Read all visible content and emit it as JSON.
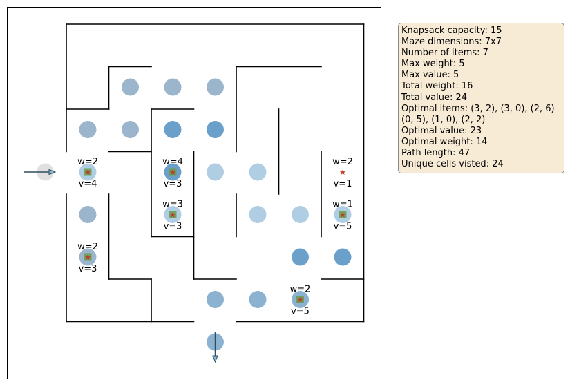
{
  "maze": {
    "rows": 7,
    "cols": 7,
    "walls": [
      [
        [
          0,
          0
        ],
        [
          7,
          0
        ]
      ],
      [
        [
          7,
          0
        ],
        [
          7,
          7
        ]
      ],
      [
        [
          7,
          7
        ],
        [
          4,
          7
        ]
      ],
      [
        [
          3,
          7
        ],
        [
          0,
          7
        ]
      ],
      [
        [
          0,
          7
        ],
        [
          0,
          4
        ]
      ],
      [
        [
          0,
          3
        ],
        [
          0,
          0
        ]
      ],
      [
        [
          1,
          1
        ],
        [
          1,
          2
        ]
      ],
      [
        [
          0,
          2
        ],
        [
          1,
          2
        ]
      ],
      [
        [
          1,
          1
        ],
        [
          2,
          1
        ]
      ],
      [
        [
          1,
          3
        ],
        [
          2,
          3
        ]
      ],
      [
        [
          2,
          2
        ],
        [
          3,
          2
        ]
      ],
      [
        [
          2,
          2
        ],
        [
          2,
          5
        ]
      ],
      [
        [
          2,
          5
        ],
        [
          3,
          5
        ]
      ],
      [
        [
          3,
          3
        ],
        [
          3,
          6
        ]
      ],
      [
        [
          3,
          6
        ],
        [
          4,
          6
        ]
      ],
      [
        [
          4,
          1
        ],
        [
          4,
          3
        ]
      ],
      [
        [
          4,
          1
        ],
        [
          6,
          1
        ]
      ],
      [
        [
          4,
          4
        ],
        [
          4,
          5
        ]
      ],
      [
        [
          5,
          2
        ],
        [
          5,
          4
        ]
      ],
      [
        [
          6,
          3
        ],
        [
          6,
          5
        ]
      ],
      [
        [
          6,
          6
        ],
        [
          7,
          6
        ]
      ],
      [
        [
          1,
          4
        ],
        [
          1,
          6
        ]
      ],
      [
        [
          1,
          6
        ],
        [
          2,
          6
        ]
      ],
      [
        [
          2,
          6
        ],
        [
          2,
          7
        ]
      ]
    ],
    "visited_cells": [
      {
        "row": 1,
        "col": 1,
        "visits": 1
      },
      {
        "row": 1,
        "col": 2,
        "visits": 1
      },
      {
        "row": 1,
        "col": 3,
        "visits": 1
      },
      {
        "row": 2,
        "col": 0,
        "visits": 1
      },
      {
        "row": 2,
        "col": 1,
        "visits": 1
      },
      {
        "row": 2,
        "col": 2,
        "visits": 2
      },
      {
        "row": 2,
        "col": 3,
        "visits": 2
      },
      {
        "row": 3,
        "col": -1,
        "visits": 0
      },
      {
        "row": 3,
        "col": 0,
        "visits": 1
      },
      {
        "row": 3,
        "col": 2,
        "visits": 2
      },
      {
        "row": 3,
        "col": 3,
        "visits": 1
      },
      {
        "row": 3,
        "col": 4,
        "visits": 1
      },
      {
        "row": 4,
        "col": 0,
        "visits": 1
      },
      {
        "row": 4,
        "col": 2,
        "visits": 1
      },
      {
        "row": 4,
        "col": 4,
        "visits": 1
      },
      {
        "row": 4,
        "col": 5,
        "visits": 1
      },
      {
        "row": 4,
        "col": 6,
        "visits": 1
      },
      {
        "row": 5,
        "col": 0,
        "visits": 1
      },
      {
        "row": 5,
        "col": 5,
        "visits": 2
      },
      {
        "row": 5,
        "col": 6,
        "visits": 2
      },
      {
        "row": 6,
        "col": 3,
        "visits": 1
      },
      {
        "row": 6,
        "col": 4,
        "visits": 1
      },
      {
        "row": 6,
        "col": 5,
        "visits": 1
      },
      {
        "row": 7,
        "col": 3,
        "visits": 1
      }
    ],
    "items": [
      {
        "row": 3,
        "col": 0,
        "weight_label": "w=2",
        "value_label": "v=4",
        "collected": true
      },
      {
        "row": 3,
        "col": 2,
        "weight_label": "w=4",
        "value_label": "v=3",
        "collected": true
      },
      {
        "row": 4,
        "col": 2,
        "weight_label": "w=3",
        "value_label": "v=3",
        "collected": true
      },
      {
        "row": 5,
        "col": 0,
        "weight_label": "w=2",
        "value_label": "v=3",
        "collected": true
      },
      {
        "row": 6,
        "col": 5,
        "weight_label": "w=2",
        "value_label": "v=5",
        "collected": true
      },
      {
        "row": 4,
        "col": 6,
        "weight_label": "w=1",
        "value_label": "v=5",
        "collected": true
      },
      {
        "row": 3,
        "col": 6,
        "weight_label": "w=2",
        "value_label": "v=1",
        "collected": false
      }
    ],
    "entrance": {
      "row": 3,
      "side": "left"
    },
    "exit": {
      "col": 3,
      "side": "bottom"
    },
    "colors": {
      "wall": "#000000",
      "visit_light": "#a6c8e0",
      "visit_mid": "#7eaacc",
      "visit_dark": "#5b96c4",
      "visit_gray": "#8fadc6",
      "start_cell": "#dddddd",
      "item_box": "#6c9a4a",
      "item_star": "#c0392b",
      "arrow": "#2f4f5f"
    }
  },
  "info": {
    "lines": [
      "Knapsack capacity: 15",
      "Maze dimensions: 7x7",
      "Number of items: 7",
      "Max weight: 5",
      "Max value: 5",
      "Total weight: 16",
      "Total value: 24",
      "Optimal items: (3, 2), (3, 0), (2, 6)",
      "(0, 5), (1, 0), (2, 2)",
      "Optimal value: 23",
      "Optimal weight: 14",
      "Path length: 47",
      "Unique cells visted: 24"
    ]
  }
}
